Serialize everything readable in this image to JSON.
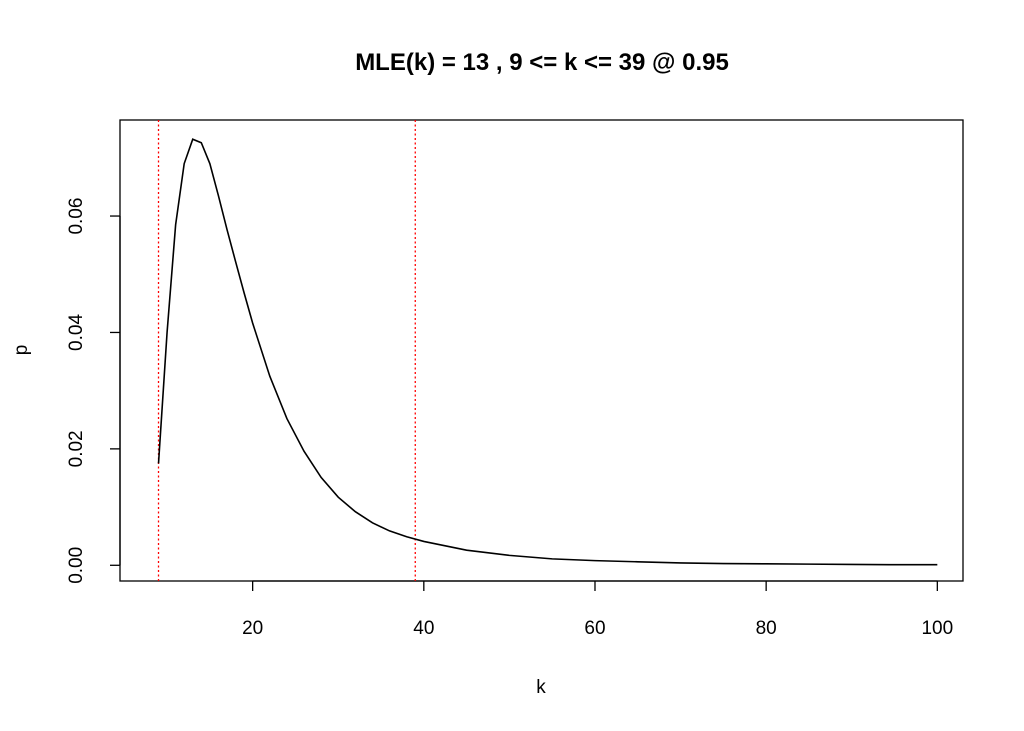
{
  "chart_data": {
    "type": "line",
    "title": "MLE(k) = 13 , 9 <= k <= 39  @ 0.95",
    "xlabel": "k",
    "ylabel": "p",
    "xlim": [
      4.5,
      103
    ],
    "ylim": [
      -0.0027,
      0.0765
    ],
    "x_ticks": [
      20,
      40,
      60,
      80,
      100
    ],
    "y_ticks": [
      0.0,
      0.02,
      0.04,
      0.06
    ],
    "x_tick_labels": [
      "20",
      "40",
      "60",
      "80",
      "100"
    ],
    "y_tick_labels": [
      "0.00",
      "0.02",
      "0.04",
      "0.06"
    ],
    "grid": false,
    "colors": {
      "curve": "#000000",
      "bounds": "#ff0000"
    },
    "vlines": [
      {
        "x": 9,
        "style": "dotted",
        "color": "#ff0000"
      },
      {
        "x": 39,
        "style": "dotted",
        "color": "#ff0000"
      }
    ],
    "series": [
      {
        "x": [
          9,
          10,
          11,
          12,
          13,
          14,
          15,
          16,
          17,
          18,
          19,
          20,
          22,
          24,
          26,
          28,
          30,
          32,
          34,
          36,
          38,
          40,
          45,
          50,
          55,
          60,
          65,
          70,
          75,
          80,
          85,
          90,
          95,
          100
        ],
        "values": [
          0.0175,
          0.04,
          0.0585,
          0.069,
          0.0732,
          0.0726,
          0.069,
          0.0635,
          0.0577,
          0.0522,
          0.0468,
          0.0416,
          0.0325,
          0.0252,
          0.0196,
          0.0151,
          0.0117,
          0.0092,
          0.0073,
          0.0059,
          0.0049,
          0.0041,
          0.0026,
          0.0017,
          0.0011,
          0.0008,
          0.0006,
          0.0004,
          0.0003,
          0.00025,
          0.0002,
          0.00015,
          0.0001,
          0.0001
        ]
      }
    ]
  }
}
